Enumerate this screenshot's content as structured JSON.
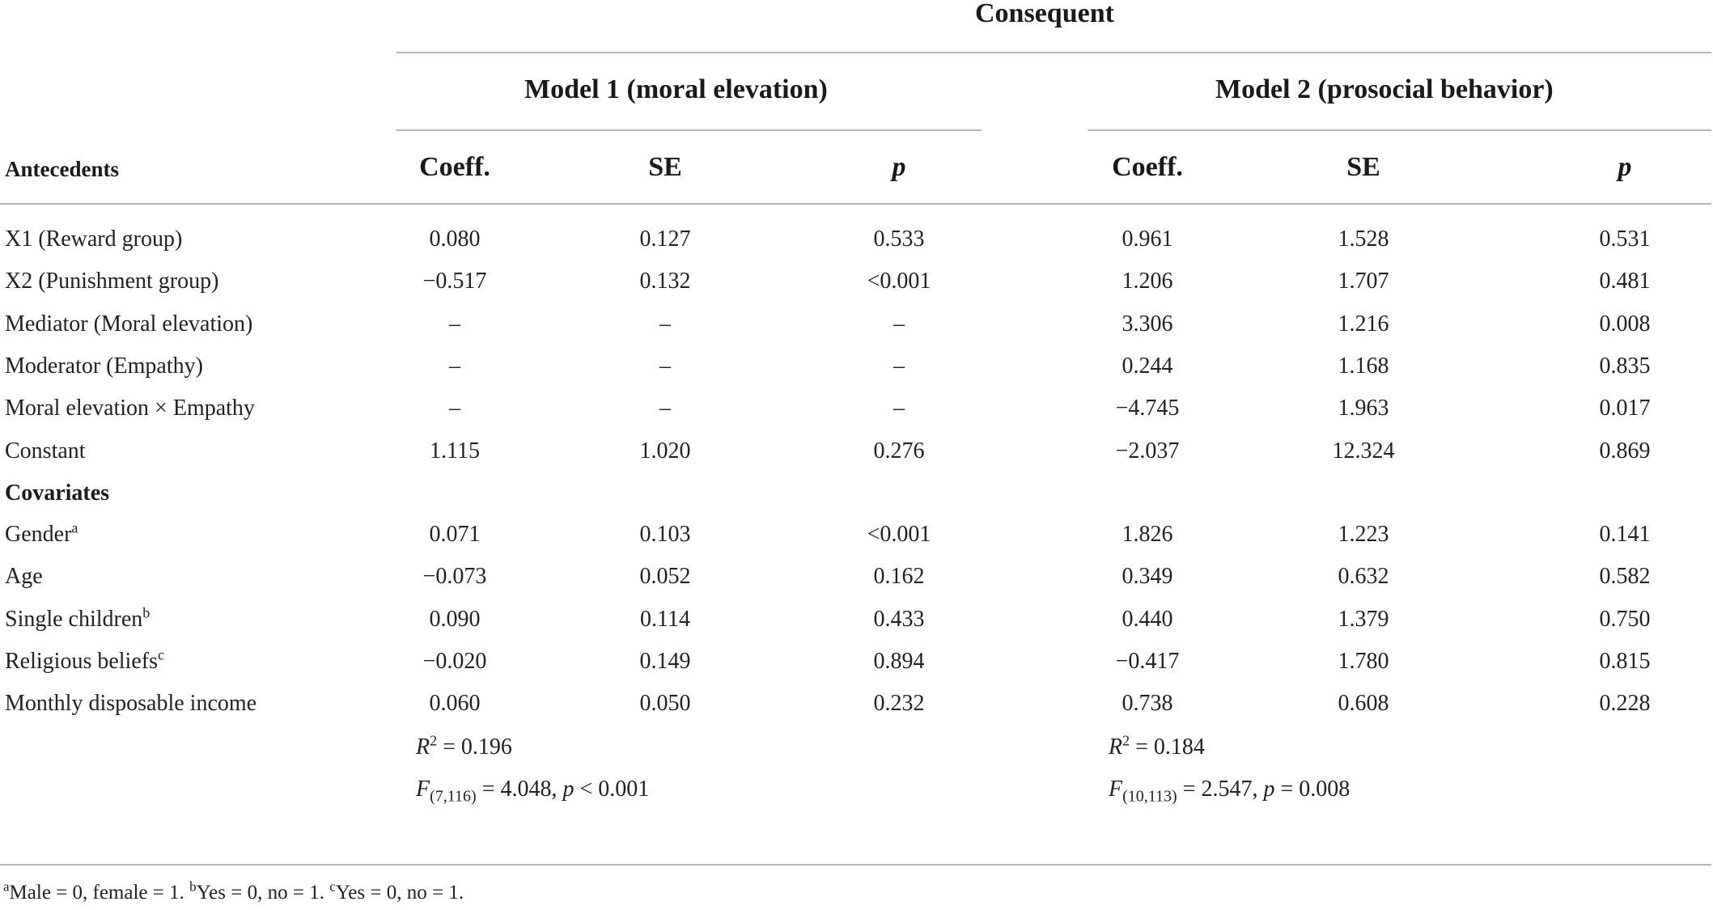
{
  "header": {
    "consequent": "Consequent",
    "model1_title": "Model 1 (moral elevation)",
    "model2_title": "Model 2 (prosocial behavior)",
    "antecedents": "Antecedents",
    "col_coeff": "Coeff.",
    "col_se": "SE",
    "col_p": "p"
  },
  "rows": [
    {
      "label": "X1 (Reward group)",
      "sup": "",
      "m1": [
        "0.080",
        "0.127",
        "0.533"
      ],
      "m2": [
        "0.961",
        "1.528",
        "0.531"
      ]
    },
    {
      "label": "X2 (Punishment group)",
      "sup": "",
      "m1": [
        "−0.517",
        "0.132",
        "<0.001"
      ],
      "m2": [
        "1.206",
        "1.707",
        "0.481"
      ]
    },
    {
      "label": "Mediator (Moral elevation)",
      "sup": "",
      "m1": [
        "–",
        "–",
        "–"
      ],
      "m2": [
        "3.306",
        "1.216",
        "0.008"
      ]
    },
    {
      "label": "Moderator (Empathy)",
      "sup": "",
      "m1": [
        "–",
        "–",
        "–"
      ],
      "m2": [
        "0.244",
        "1.168",
        "0.835"
      ]
    },
    {
      "label": "Moral elevation × Empathy",
      "sup": "",
      "m1": [
        "–",
        "–",
        "–"
      ],
      "m2": [
        "−4.745",
        "1.963",
        "0.017"
      ]
    },
    {
      "label": "Constant",
      "sup": "",
      "m1": [
        "1.115",
        "1.020",
        "0.276"
      ],
      "m2": [
        "−2.037",
        "12.324",
        "0.869"
      ]
    }
  ],
  "covariates_label": "Covariates",
  "covariate_rows": [
    {
      "label": "Gender",
      "sup": "a",
      "m1": [
        "0.071",
        "0.103",
        "<0.001"
      ],
      "m2": [
        "1.826",
        "1.223",
        "0.141"
      ]
    },
    {
      "label": "Age",
      "sup": "",
      "m1": [
        "−0.073",
        "0.052",
        "0.162"
      ],
      "m2": [
        "0.349",
        "0.632",
        "0.582"
      ]
    },
    {
      "label": "Single children",
      "sup": "b",
      "m1": [
        "0.090",
        "0.114",
        "0.433"
      ],
      "m2": [
        "0.440",
        "1.379",
        "0.750"
      ]
    },
    {
      "label": "Religious beliefs",
      "sup": "c",
      "m1": [
        "−0.020",
        "0.149",
        "0.894"
      ],
      "m2": [
        "−0.417",
        "1.780",
        "0.815"
      ]
    },
    {
      "label": "Monthly disposable income",
      "sup": "",
      "m1": [
        "0.060",
        "0.050",
        "0.232"
      ],
      "m2": [
        "0.738",
        "0.608",
        "0.228"
      ]
    }
  ],
  "fit": {
    "m1_r2_label": "R",
    "m1_r2_sup": "2",
    "m1_r2_value": " = 0.196",
    "m1_f_label": "F",
    "m1_f_sub": "(7,116)",
    "m1_f_value": " = 4.048, ",
    "m1_p_label": "p",
    "m1_p_value": " < 0.001",
    "m2_r2_label": "R",
    "m2_r2_sup": "2",
    "m2_r2_value": " = 0.184",
    "m2_f_label": "F",
    "m2_f_sub": "(10,113)",
    "m2_f_value": " = 2.547, ",
    "m2_p_label": "p",
    "m2_p_value": " = 0.008"
  },
  "footnotes": [
    {
      "mark": "a",
      "text": "Male = 0, female = 1. "
    },
    {
      "mark": "b",
      "text": "Yes = 0, no = 1. "
    },
    {
      "mark": "c",
      "text": "Yes = 0, no = 1."
    }
  ]
}
